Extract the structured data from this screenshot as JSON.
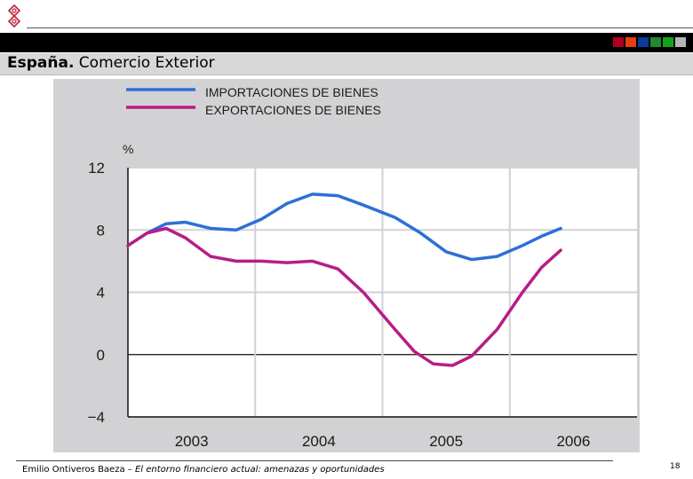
{
  "header": {
    "title_bold": "España.",
    "title_rest": " Comercio Exterior",
    "squares": [
      "#b00020",
      "#e8400c",
      "#0a3a9c",
      "#1f8a2e",
      "#17a21e",
      "#b5b5b5"
    ]
  },
  "chart_data": {
    "type": "line",
    "ylabel": "%",
    "yticks": [
      12,
      8,
      4,
      0,
      -4
    ],
    "ylim": [
      -4,
      12
    ],
    "xlim": [
      2002.6,
      2006.6
    ],
    "xticks": [
      "2003",
      "2004",
      "2005",
      "2006"
    ],
    "grid": true,
    "legend": "top-left",
    "series": [
      {
        "name": "IMPORTACIONES DE BIENES",
        "color": "#2d6fd6",
        "points": [
          [
            2002.6,
            7.0
          ],
          [
            2002.75,
            7.8
          ],
          [
            2002.9,
            8.4
          ],
          [
            2003.05,
            8.5
          ],
          [
            2003.25,
            8.1
          ],
          [
            2003.45,
            8.0
          ],
          [
            2003.65,
            8.7
          ],
          [
            2003.85,
            9.7
          ],
          [
            2004.05,
            10.3
          ],
          [
            2004.25,
            10.2
          ],
          [
            2004.45,
            9.6
          ],
          [
            2004.7,
            8.8
          ],
          [
            2004.9,
            7.8
          ],
          [
            2005.1,
            6.6
          ],
          [
            2005.3,
            6.1
          ],
          [
            2005.5,
            6.3
          ],
          [
            2005.7,
            7.0
          ],
          [
            2005.85,
            7.6
          ],
          [
            2006.0,
            8.1
          ]
        ]
      },
      {
        "name": "EXPORTACIONES DE BIENES",
        "color": "#b81c86",
        "points": [
          [
            2002.6,
            7.0
          ],
          [
            2002.75,
            7.8
          ],
          [
            2002.9,
            8.1
          ],
          [
            2003.05,
            7.5
          ],
          [
            2003.25,
            6.3
          ],
          [
            2003.45,
            6.0
          ],
          [
            2003.65,
            6.0
          ],
          [
            2003.85,
            5.9
          ],
          [
            2004.05,
            6.0
          ],
          [
            2004.25,
            5.5
          ],
          [
            2004.45,
            4.0
          ],
          [
            2004.7,
            1.6
          ],
          [
            2004.85,
            0.2
          ],
          [
            2005.0,
            -0.6
          ],
          [
            2005.15,
            -0.7
          ],
          [
            2005.3,
            -0.1
          ],
          [
            2005.5,
            1.6
          ],
          [
            2005.7,
            4.0
          ],
          [
            2005.85,
            5.6
          ],
          [
            2006.0,
            6.7
          ]
        ]
      }
    ]
  },
  "footer": {
    "author": "Emilio Ontiveros Baeza – ",
    "work": "El entorno financiero actual: amenazas y oportunidades",
    "page": "18"
  }
}
